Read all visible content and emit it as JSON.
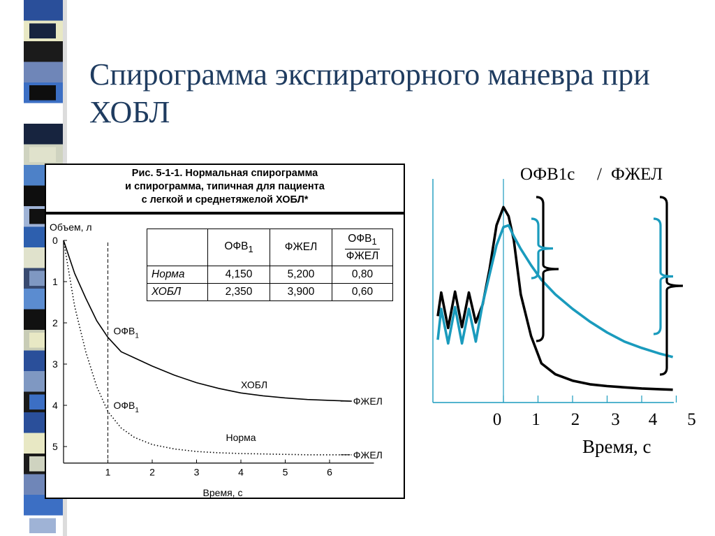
{
  "slide": {
    "title": "Спирограмма экспираторного маневра при ХОБЛ",
    "strip_colors": [
      "#2a4f9a",
      "#e8e8c4",
      "#1b1b1b",
      "#6f86b8",
      "#3c6fc4",
      "#ffffff",
      "#17243f",
      "#cfd3c0",
      "#4d81c8",
      "#0e0e0e",
      "#9fb3d6",
      "#2d5fae",
      "#e0e2cc",
      "#384a70",
      "#5b8cd0",
      "#111111",
      "#c8ccb6",
      "#2a4f9a",
      "#7f98c2",
      "#1a1a1a"
    ]
  },
  "figure": {
    "caption_lines": [
      "Рис. 5-1-1. Нормальная спирограмма",
      "и спирограмма, типичная для пациента",
      "с легкой и среднетяжелой ХОБЛ*"
    ],
    "table": {
      "col_fev1": "ОФВ",
      "col_fev1_sub": "1",
      "col_fvc": "ФЖЕЛ",
      "col_ratio_num": "ОФВ",
      "col_ratio_num_sub": "1",
      "col_ratio_den": "ФЖЕЛ",
      "rows": [
        {
          "label": "Норма",
          "fev1": "4,150",
          "fvc": "5,200",
          "ratio": "0,80"
        },
        {
          "label": "ХОБЛ",
          "fev1": "2,350",
          "fvc": "3,900",
          "ratio": "0,60"
        }
      ]
    }
  },
  "chart_data": [
    {
      "type": "line",
      "ylabel": "Объем, л",
      "xlabel": "Время, с",
      "xlim": [
        0,
        7
      ],
      "ylim": [
        0,
        5.4
      ],
      "y_inverted": true,
      "x_ticks": [
        1,
        2,
        3,
        4,
        5,
        6
      ],
      "y_ticks": [
        0,
        1,
        2,
        3,
        4,
        5
      ],
      "vertical_marker_x": 1,
      "series": [
        {
          "name": "ХОБЛ",
          "style": "solid",
          "x": [
            0,
            0.25,
            0.5,
            0.75,
            1,
            1.3,
            1.6,
            2,
            2.5,
            3,
            3.5,
            4,
            4.5,
            5,
            5.5,
            6,
            6.5
          ],
          "y": [
            0,
            0.8,
            1.4,
            1.95,
            2.35,
            2.7,
            2.85,
            3.05,
            3.27,
            3.45,
            3.59,
            3.7,
            3.77,
            3.82,
            3.86,
            3.88,
            3.9
          ],
          "point_labels": [
            {
              "x": 1,
              "y": 2.35,
              "text": "ОФВ",
              "sub": "1"
            },
            {
              "x": 6.5,
              "y": 3.9,
              "text": "ФЖЕЛ"
            }
          ]
        },
        {
          "name": "Норма",
          "style": "dotted",
          "x": [
            0,
            0.25,
            0.5,
            0.75,
            1,
            1.3,
            1.6,
            2,
            2.5,
            3,
            3.5,
            4,
            4.5,
            5,
            5.5,
            6,
            6.5
          ],
          "y": [
            0,
            1.6,
            2.7,
            3.55,
            4.15,
            4.55,
            4.78,
            4.95,
            5.06,
            5.12,
            5.15,
            5.17,
            5.18,
            5.19,
            5.2,
            5.2,
            5.2
          ],
          "point_labels": [
            {
              "x": 1,
              "y": 4.15,
              "text": "ОФВ",
              "sub": "1"
            },
            {
              "x": 6.5,
              "y": 5.2,
              "text": "ФЖЕЛ"
            }
          ]
        }
      ]
    },
    {
      "type": "line",
      "title": "ОФВ1с / ФЖЕЛ",
      "title_left": "ОФВ1с",
      "title_sep": "/",
      "title_right": "ФЖЕЛ",
      "xlabel": "Время, с",
      "x_ticks": [
        0,
        1,
        2,
        3,
        4,
        5
      ],
      "x_range": [
        -1.9,
        5
      ],
      "colors": {
        "black": "#000000",
        "teal": "#1a9bbd"
      },
      "series": [
        {
          "color": "black",
          "x": [
            -1.9,
            -1.8,
            -1.6,
            -1.4,
            -1.2,
            -1.0,
            -0.8,
            -0.6,
            -0.4,
            -0.2,
            0,
            0.15,
            0.3,
            0.5,
            0.8,
            1.1,
            1.5,
            2.0,
            2.5,
            3.0,
            3.5,
            4.0,
            4.5,
            4.9
          ],
          "y": [
            4.6,
            5.9,
            3.95,
            5.95,
            4.0,
            5.9,
            4.25,
            5.25,
            7.2,
            9.6,
            10.6,
            10.1,
            8.8,
            5.8,
            3.5,
            2.0,
            1.4,
            1.05,
            0.85,
            0.75,
            0.68,
            0.62,
            0.58,
            0.55
          ]
        },
        {
          "color": "teal",
          "x": [
            -1.9,
            -1.8,
            -1.6,
            -1.4,
            -1.2,
            -1.0,
            -0.8,
            -0.6,
            -0.4,
            -0.2,
            0,
            0.15,
            0.3,
            0.5,
            0.8,
            1.1,
            1.5,
            2.0,
            2.5,
            3.0,
            3.5,
            4.0,
            4.5,
            4.9
          ],
          "y": [
            3.3,
            5.0,
            3.1,
            5.1,
            3.1,
            5.0,
            3.2,
            5.3,
            6.9,
            8.5,
            9.5,
            9.6,
            9.0,
            8.3,
            7.4,
            6.6,
            5.8,
            5.0,
            4.3,
            3.7,
            3.2,
            2.85,
            2.55,
            2.35
          ]
        }
      ],
      "annotations": [
        "brace",
        "brace",
        "brace",
        "brace"
      ]
    }
  ]
}
